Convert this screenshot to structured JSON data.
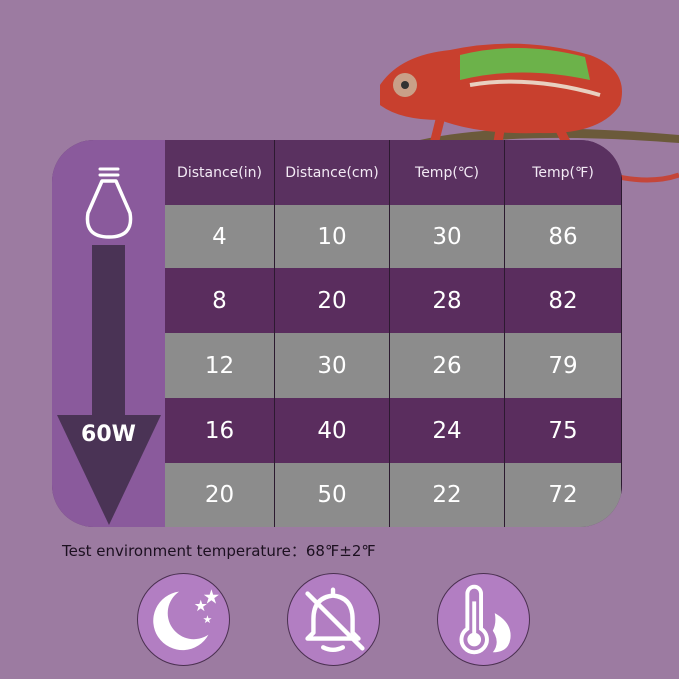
{
  "table": {
    "headers": [
      "Distance(in)",
      "Distance(cm)",
      "Temp(℃)",
      "Temp(℉)"
    ],
    "rows": [
      [
        "4",
        "10",
        "30",
        "86"
      ],
      [
        "8",
        "20",
        "28",
        "82"
      ],
      [
        "12",
        "30",
        "26",
        "79"
      ],
      [
        "16",
        "40",
        "24",
        "75"
      ],
      [
        "20",
        "50",
        "22",
        "72"
      ]
    ]
  },
  "wattage": "60W",
  "note": "Test environment temperature：68℉±2℉",
  "icons": [
    "moon-stars-icon",
    "bell-off-icon",
    "thermometer-flame-icon"
  ],
  "colors": {
    "background": "#9c7ba1",
    "header": "#5a3160",
    "row_gray": "#8c8c8c",
    "row_purple": "#5a2d5e",
    "arrow": "#4a3355"
  }
}
